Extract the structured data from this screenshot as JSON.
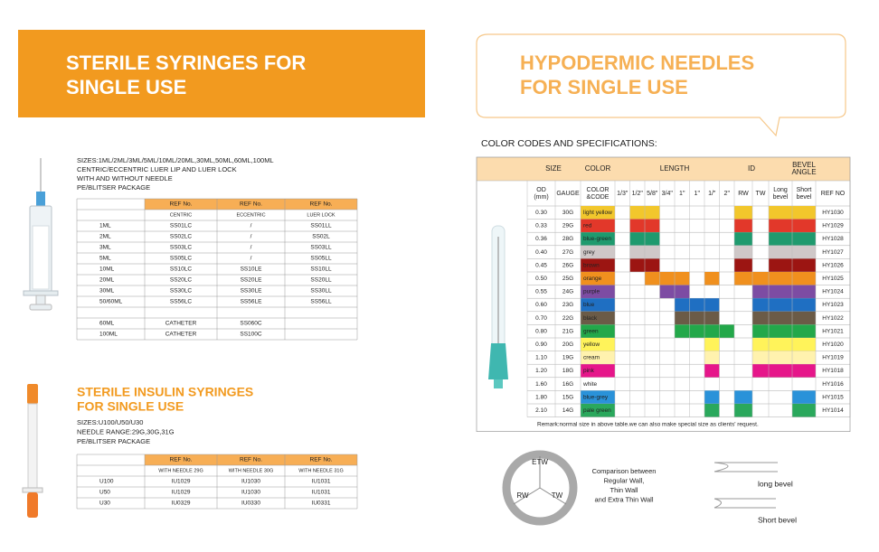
{
  "syringes": {
    "title": [
      "STERILE SYRINGES FOR",
      "SINGLE USE"
    ],
    "specs": [
      "SIZES:1ML/2ML/3ML/5ML/10ML/20ML,30ML,50ML,60ML,100ML",
      "CENTRIC/ECCENTRIC LUER LIP AND LUER LOCK",
      "WITH AND WITHOUT NEEDLE",
      "PE/BLITSER PACKAGE"
    ],
    "table": {
      "header": [
        "REF No.",
        "REF No.",
        "REF No."
      ],
      "subheader": [
        "CENTRIC",
        "ECCENTRIC",
        "LUER LOCK"
      ],
      "rows": [
        [
          "1ML",
          "SS01LC",
          "/",
          "SS01LL"
        ],
        [
          "2ML",
          "SS02LC",
          "/",
          "SS02L"
        ],
        [
          "3ML",
          "SS03LC",
          "/",
          "SS03LL"
        ],
        [
          "5ML",
          "SS05LC",
          "/",
          "SS05LL"
        ],
        [
          "10ML",
          "SS10LC",
          "SS10LE",
          "SS10LL"
        ],
        [
          "20ML",
          "SS20LC",
          "SS20LE",
          "SS20LL"
        ],
        [
          "30ML",
          "SS30LC",
          "SS30LE",
          "SS30LL"
        ],
        [
          "50/60ML",
          "SS56LC",
          "SS56LE",
          "SS56LL"
        ]
      ],
      "extra_rows": [
        [
          "60ML",
          "CATHETER",
          "SS060C"
        ],
        [
          "100ML",
          "CATHETER",
          "SS100C"
        ]
      ]
    }
  },
  "insulin": {
    "title": [
      "STERILE INSULIN SYRINGES",
      "FOR SINGLE USE"
    ],
    "specs": [
      "SIZES:U100/U50/U30",
      "NEEDLE RANGE:29G,30G,31G",
      "PE/BLITSER PACKAGE"
    ],
    "table": {
      "header": [
        "REF No.",
        "REF No.",
        "REF No."
      ],
      "subheader": [
        "WITH NEEDLE 29G",
        "WITH NEEDLE 30G",
        "WITH NEEDLE 31G"
      ],
      "rows": [
        [
          "U100",
          "IU1029",
          "IU1030",
          "IU1031"
        ],
        [
          "U50",
          "IU1029",
          "IU1030",
          "IU1031"
        ],
        [
          "U30",
          "IU0329",
          "IU0330",
          "IU0331"
        ]
      ]
    }
  },
  "needles": {
    "title": [
      "HYPODERMIC NEEDLES",
      "FOR SINGLE USE"
    ],
    "subtitle": "COLOR CODES AND SPECIFICATIONS:",
    "table": {
      "group_headers": [
        "SIZE",
        "COLOR",
        "LENGTH",
        "ID",
        [
          "BEVEL",
          "ANGLE"
        ]
      ],
      "columns": [
        [
          "OD",
          "(mm)"
        ],
        "GAUGE",
        [
          "COLOR",
          "&CODE"
        ],
        "1/3\"",
        "1/2\"",
        "5/8\"",
        "3/4\"",
        "1\"",
        "1\"",
        "1/\"",
        "2\"",
        "RW",
        "TW",
        [
          "Long",
          "bevel"
        ],
        [
          "Short",
          "bevel"
        ],
        "REF NO"
      ],
      "rows": [
        {
          "od": "0.30",
          "gauge": "30G",
          "color_code": "light yellow",
          "ref": "HY1030",
          "color": "#f2c72c",
          "filled": [
            1,
            2,
            8,
            10,
            11
          ]
        },
        {
          "od": "0.33",
          "gauge": "29G",
          "color_code": "red",
          "ref": "HY1029",
          "color": "#e2382a",
          "filled": [
            1,
            2,
            8,
            10,
            11
          ]
        },
        {
          "od": "0.36",
          "gauge": "28G",
          "color_code": "blue-green",
          "ref": "HY1028",
          "color": "#1f9a6e",
          "filled": [
            1,
            2,
            8,
            10,
            11
          ]
        },
        {
          "od": "0.40",
          "gauge": "27G",
          "color_code": "grey",
          "ref": "HY1027",
          "color": "#cfc8c8",
          "filled": [
            1,
            2,
            8,
            10,
            11
          ]
        },
        {
          "od": "0.45",
          "gauge": "26G",
          "color_code": "brown",
          "ref": "HY1026",
          "color": "#9c1512",
          "filled": [
            1,
            2,
            8,
            10,
            11
          ]
        },
        {
          "od": "0.50",
          "gauge": "25G",
          "color_code": "orange",
          "ref": "HY1025",
          "color": "#f0901e",
          "filled": [
            2,
            3,
            4,
            6,
            8,
            9,
            10,
            11
          ]
        },
        {
          "od": "0.55",
          "gauge": "24G",
          "color_code": "purple",
          "ref": "HY1024",
          "color": "#7d4ca3",
          "filled": [
            3,
            4,
            9,
            10,
            11
          ]
        },
        {
          "od": "0.60",
          "gauge": "23G",
          "color_code": "blue",
          "ref": "HY1023",
          "color": "#1f6fc2",
          "filled": [
            4,
            5,
            6,
            9,
            10,
            11
          ]
        },
        {
          "od": "0.70",
          "gauge": "22G",
          "color_code": "black",
          "ref": "HY1022",
          "color": "#6b5b47",
          "filled": [
            4,
            5,
            6,
            9,
            10,
            11
          ]
        },
        {
          "od": "0.80",
          "gauge": "21G",
          "color_code": "green",
          "ref": "HY1021",
          "color": "#23a84a",
          "filled": [
            4,
            5,
            6,
            7,
            9,
            10,
            11
          ]
        },
        {
          "od": "0.90",
          "gauge": "20G",
          "color_code": "yellow",
          "ref": "HY1020",
          "color": "#fff35a",
          "filled": [
            6,
            9,
            10,
            11
          ]
        },
        {
          "od": "1.10",
          "gauge": "19G",
          "color_code": "cream",
          "ref": "HY1019",
          "color": "#fff2ae",
          "filled": [
            6,
            9,
            10,
            11
          ]
        },
        {
          "od": "1.20",
          "gauge": "18G",
          "color_code": "pink",
          "ref": "HY1018",
          "color": "#e6168a",
          "filled": [
            6,
            9,
            10,
            11
          ]
        },
        {
          "od": "1.60",
          "gauge": "16G",
          "color_code": "white",
          "ref": "HY1016",
          "color": "#ffffff",
          "filled": []
        },
        {
          "od": "1.80",
          "gauge": "15G",
          "color_code": "blue-grey",
          "ref": "HY1015",
          "color": "#2a92d9",
          "filled": [
            6,
            8,
            11
          ]
        },
        {
          "od": "2.10",
          "gauge": "14G",
          "color_code": "pale green",
          "ref": "HY1014",
          "color": "#2aa85c",
          "filled": [
            6,
            8,
            11
          ]
        }
      ],
      "remark": "Remark:normal size in above table.we can also make special size as clients' request."
    },
    "wall_diagram": {
      "labels": [
        "ETW",
        "RW",
        "TW"
      ],
      "caption": [
        "Comparison between",
        "Regular Wall,",
        "Thin Wall",
        "and Extra Thin Wall"
      ]
    },
    "bevels": [
      "long bevel",
      "Short bevel"
    ]
  }
}
